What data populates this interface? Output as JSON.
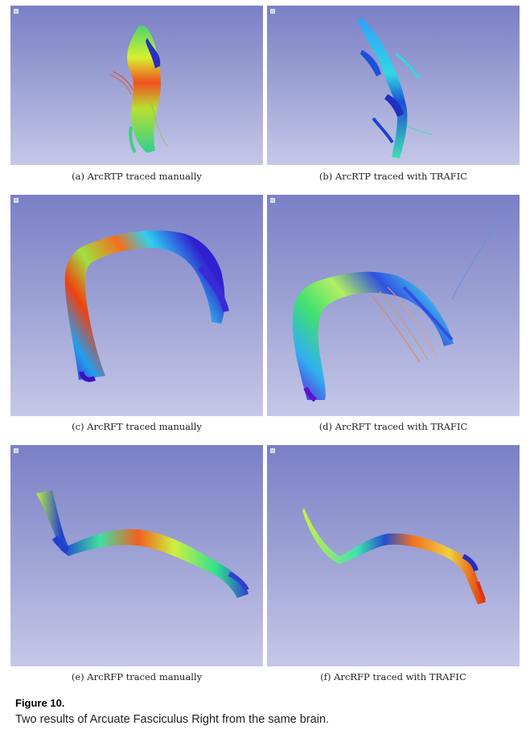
{
  "panels": [
    {
      "id": "a",
      "caption": "(a) ArcRTP traced manually"
    },
    {
      "id": "b",
      "caption": "(b) ArcRTP traced with TRAFIC"
    },
    {
      "id": "c",
      "caption": "(c) ArcRFT traced manually"
    },
    {
      "id": "d",
      "caption": "(d) ArcRFT traced with TRAFIC"
    },
    {
      "id": "e",
      "caption": "(e) ArcRFP traced manually"
    },
    {
      "id": "f",
      "caption": "(f) ArcRFP traced with TRAFIC"
    }
  ],
  "figure": {
    "label": "Figure 10.",
    "description": "Two results of Arcuate Fasciculus Right from the same brain."
  }
}
